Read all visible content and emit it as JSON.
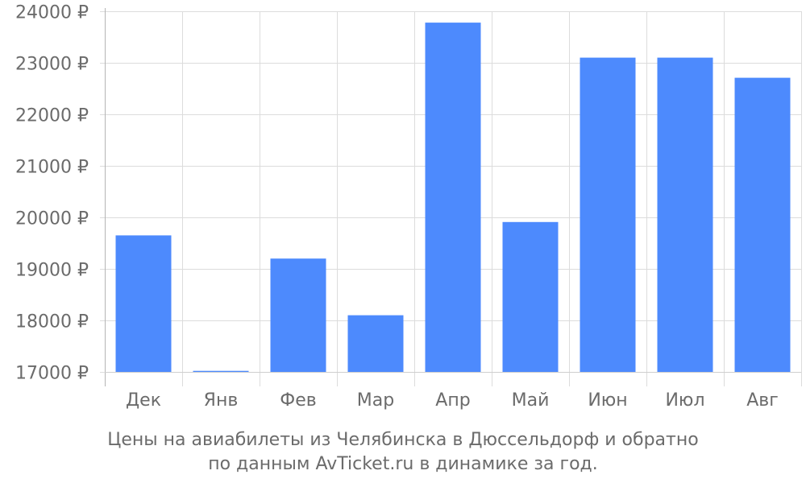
{
  "chart_data": {
    "type": "bar",
    "categories": [
      "Дек",
      "Янв",
      "Фев",
      "Мар",
      "Апр",
      "Май",
      "Июн",
      "Июл",
      "Авг"
    ],
    "values": [
      19650,
      17020,
      19200,
      18100,
      23780,
      19910,
      23100,
      23100,
      22710
    ],
    "ylim": [
      17000,
      24000
    ],
    "yticks": [
      17000,
      18000,
      19000,
      20000,
      21000,
      22000,
      23000,
      24000
    ],
    "ytick_suffix": " ₽",
    "grid": true,
    "bar_color": "#4d8afd"
  },
  "caption": {
    "line1": "Цены на авиабилеты из Челябинска в Дюссельдорф и обратно",
    "line2": "по данным AvTicket.ru в динамике за год."
  }
}
